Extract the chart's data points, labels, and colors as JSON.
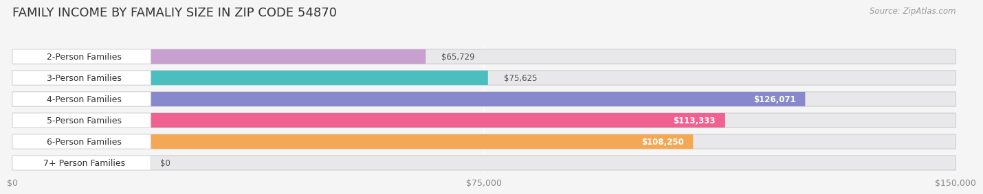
{
  "title": "FAMILY INCOME BY FAMALIY SIZE IN ZIP CODE 54870",
  "source": "Source: ZipAtlas.com",
  "categories": [
    "2-Person Families",
    "3-Person Families",
    "4-Person Families",
    "5-Person Families",
    "6-Person Families",
    "7+ Person Families"
  ],
  "values": [
    65729,
    75625,
    126071,
    113333,
    108250,
    0
  ],
  "bar_colors": [
    "#c8a0d0",
    "#4bbfbf",
    "#8888cc",
    "#f06090",
    "#f4a855",
    "#f0b0b0"
  ],
  "value_labels": [
    "$65,729",
    "$75,625",
    "$126,071",
    "$113,333",
    "$108,250",
    "$0"
  ],
  "label_inside": [
    false,
    false,
    true,
    true,
    true,
    false
  ],
  "xlim": [
    0,
    150000
  ],
  "xticks": [
    0,
    75000,
    150000
  ],
  "xticklabels": [
    "$0",
    "$75,000",
    "$150,000"
  ],
  "background_color": "#f5f5f5",
  "bar_bg_color": "#e8e8ea",
  "label_pill_color": "#ffffff",
  "title_fontsize": 13,
  "source_fontsize": 8.5,
  "tick_fontsize": 9,
  "cat_label_fontsize": 9,
  "val_label_fontsize": 8.5
}
